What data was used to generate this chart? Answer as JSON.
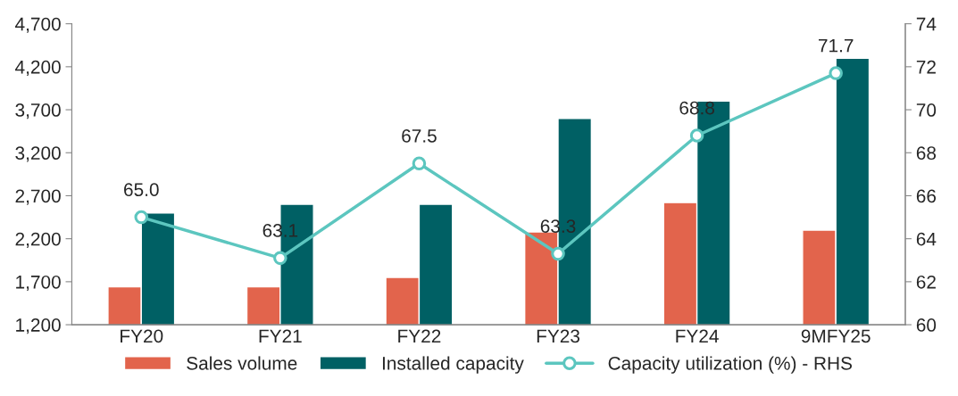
{
  "chart_data": {
    "type": "bar",
    "categories": [
      "FY20",
      "FY21",
      "FY22",
      "FY23",
      "FY24",
      "9MFY25"
    ],
    "series": [
      {
        "name": "Sales volume",
        "color": "#e2644c",
        "values": [
          1640,
          1640,
          1750,
          2280,
          2620,
          2300
        ]
      },
      {
        "name": "Installed capacity",
        "color": "#006064",
        "values": [
          2500,
          2600,
          2600,
          3600,
          3800,
          4300
        ]
      },
      {
        "name": "Capacity utilization (%) - RHS",
        "type": "line",
        "axis": "y2",
        "color": "#5cc6bf",
        "marker": "circle",
        "values": [
          65.0,
          63.1,
          67.5,
          63.3,
          68.8,
          71.7
        ]
      }
    ],
    "ylim": [
      1200,
      4700
    ],
    "yticks": [
      {
        "value": 1200,
        "label": "1,200"
      },
      {
        "value": 1700,
        "label": "1,700"
      },
      {
        "value": 2200,
        "label": "2,200"
      },
      {
        "value": 2700,
        "label": "2,700"
      },
      {
        "value": 3200,
        "label": "3,200"
      },
      {
        "value": 3700,
        "label": "3,700"
      },
      {
        "value": 4200,
        "label": "4,200"
      },
      {
        "value": 4700,
        "label": "4,700"
      }
    ],
    "y2lim": [
      60,
      74
    ],
    "y2ticks": [
      60,
      62,
      64,
      66,
      68,
      70,
      72,
      74
    ],
    "value_labels": [
      "65.0",
      "63.1",
      "67.5",
      "63.3",
      "68.8",
      "71.7"
    ],
    "grid": false,
    "legend": "bottom"
  }
}
